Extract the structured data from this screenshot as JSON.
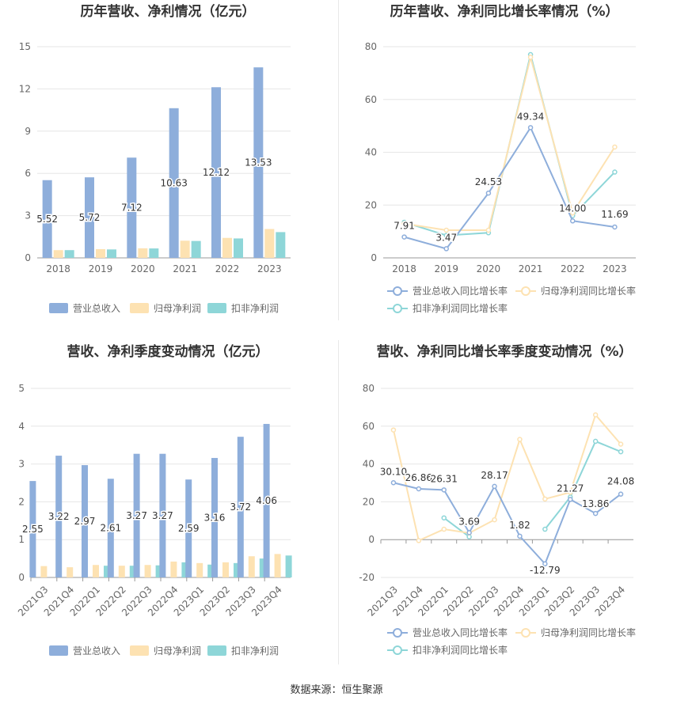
{
  "colors": {
    "revenue": "#8EAEDB",
    "net_profit": "#FDE2B2",
    "deducted_profit": "#8ED6D8",
    "grid": "#e6e6e6",
    "axis": "#999999",
    "tick_text": "#666666",
    "title_text": "#333333"
  },
  "source": "数据来源：恒生聚源",
  "chart_data": [
    {
      "type": "bar",
      "title": "历年营收、净利情况（亿元）",
      "categories": [
        "2018",
        "2019",
        "2020",
        "2021",
        "2022",
        "2023"
      ],
      "ylim": [
        0,
        15
      ],
      "yticks": [
        "0",
        "3",
        "6",
        "9",
        "12",
        "15"
      ],
      "grid": true,
      "legend": "bottom",
      "series": [
        {
          "name": "营业总收入",
          "values": [
            5.52,
            5.72,
            7.12,
            10.63,
            12.12,
            13.53
          ],
          "labels": [
            "5.52",
            "5.72",
            "7.12",
            "10.63",
            "12.12",
            "13.53"
          ]
        },
        {
          "name": "归母净利润",
          "values": [
            0.55,
            0.62,
            0.68,
            1.22,
            1.42,
            2.05
          ]
        },
        {
          "name": "扣非净利润",
          "values": [
            0.55,
            0.6,
            0.67,
            1.2,
            1.38,
            1.83
          ]
        }
      ]
    },
    {
      "type": "line",
      "title": "历年营收、净利同比增长率情况（%）",
      "categories": [
        "2018",
        "2019",
        "2020",
        "2021",
        "2022",
        "2023"
      ],
      "ylim": [
        0,
        80
      ],
      "yticks": [
        "0",
        "20",
        "40",
        "60",
        "80"
      ],
      "grid": true,
      "legend": "bottom",
      "series": [
        {
          "name": "营业总收入同比增长率",
          "values": [
            7.91,
            3.47,
            24.53,
            49.34,
            14.0,
            11.69
          ],
          "labels": [
            "7.91",
            "3.47",
            "24.53",
            "49.34",
            "14.00",
            "11.69"
          ]
        },
        {
          "name": "归母净利润同比增长率",
          "values": [
            13.0,
            10.5,
            10.5,
            76.0,
            17.0,
            42.0
          ]
        },
        {
          "name": "扣非净利润同比增长率",
          "values": [
            13.5,
            8.5,
            9.5,
            77.0,
            16.0,
            32.5
          ]
        }
      ]
    },
    {
      "type": "bar",
      "title": "营收、净利季度变动情况（亿元）",
      "categories": [
        "2021Q3",
        "2021Q4",
        "2022Q1",
        "2022Q2",
        "2022Q3",
        "2022Q4",
        "2023Q1",
        "2023Q2",
        "2023Q3",
        "2023Q4"
      ],
      "ylim": [
        0,
        5
      ],
      "yticks": [
        "0",
        "1",
        "2",
        "3",
        "4",
        "5"
      ],
      "grid": true,
      "legend": "bottom",
      "series": [
        {
          "name": "营业总收入",
          "values": [
            2.55,
            3.22,
            2.97,
            2.61,
            3.27,
            3.27,
            2.59,
            3.16,
            3.72,
            4.06
          ],
          "labels": [
            "2.55",
            "3.22",
            "2.97",
            "2.61",
            "3.27",
            "3.27",
            "2.59",
            "3.16",
            "3.72",
            "4.06"
          ]
        },
        {
          "name": "归母净利润",
          "values": [
            0.3,
            0.27,
            0.33,
            0.31,
            0.33,
            0.42,
            0.38,
            0.4,
            0.56,
            0.62
          ]
        },
        {
          "name": "扣非净利润",
          "values": [
            null,
            null,
            0.31,
            0.31,
            0.32,
            0.4,
            0.34,
            0.38,
            0.5,
            0.58
          ]
        }
      ]
    },
    {
      "type": "line",
      "title": "营收、净利同比增长率季度变动情况（%）",
      "categories": [
        "2021Q3",
        "2021Q4",
        "2022Q1",
        "2022Q2",
        "2022Q3",
        "2022Q4",
        "2023Q1",
        "2023Q2",
        "2023Q3",
        "2023Q4"
      ],
      "ylim": [
        -20,
        80
      ],
      "yticks": [
        "-20",
        "0",
        "20",
        "40",
        "60",
        "80"
      ],
      "grid": true,
      "legend": "bottom",
      "series": [
        {
          "name": "营业总收入同比增长率",
          "values": [
            30.1,
            26.86,
            26.31,
            3.69,
            28.17,
            1.82,
            -12.79,
            21.27,
            13.86,
            24.08
          ],
          "labels": [
            "30.10",
            "26.86",
            "26.31",
            "3.69",
            "28.17",
            "1.82",
            "-12.79",
            "21.27",
            "13.86",
            "24.08"
          ]
        },
        {
          "name": "归母净利润同比增长率",
          "values": [
            58.0,
            -0.5,
            5.5,
            3.5,
            10.5,
            53.0,
            21.5,
            25.0,
            66.0,
            50.5
          ]
        },
        {
          "name": "扣非净利润同比增长率",
          "values": [
            null,
            null,
            11.5,
            1.5,
            null,
            null,
            5.5,
            22.5,
            52.0,
            46.5
          ]
        }
      ]
    }
  ]
}
